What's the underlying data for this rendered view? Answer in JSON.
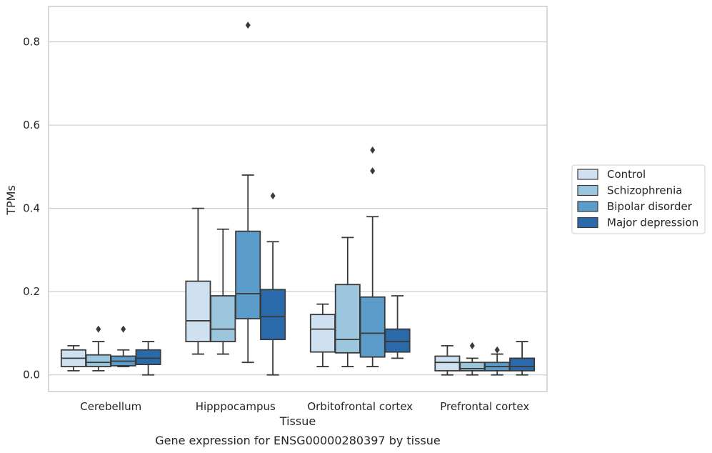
{
  "chart_data": {
    "type": "box",
    "caption": "Gene expression for ENSG00000280397 by tissue",
    "xlabel": "Tissue",
    "ylabel": "TPMs",
    "ylim": [
      -0.04,
      0.885
    ],
    "yticks": [
      0.0,
      0.2,
      0.4,
      0.6,
      0.8
    ],
    "ytick_labels": [
      "0.0",
      "0.2",
      "0.4",
      "0.6",
      "0.8"
    ],
    "grid": "horizontal",
    "legend_position": "right",
    "categories": [
      "Cerebellum",
      "Hipppocampus",
      "Orbitofrontal cortex",
      "Prefrontal cortex"
    ],
    "series": [
      {
        "name": "Control",
        "color": "#cfe0f1",
        "boxes": [
          {
            "q1": 0.02,
            "median": 0.04,
            "q3": 0.06,
            "whisker_low": 0.01,
            "whisker_high": 0.07,
            "outliers": []
          },
          {
            "q1": 0.08,
            "median": 0.13,
            "q3": 0.225,
            "whisker_low": 0.05,
            "whisker_high": 0.4,
            "outliers": []
          },
          {
            "q1": 0.055,
            "median": 0.11,
            "q3": 0.145,
            "whisker_low": 0.02,
            "whisker_high": 0.17,
            "outliers": []
          },
          {
            "q1": 0.01,
            "median": 0.03,
            "q3": 0.045,
            "whisker_low": 0.0,
            "whisker_high": 0.07,
            "outliers": []
          }
        ]
      },
      {
        "name": "Schizophrenia",
        "color": "#9cc6de",
        "boxes": [
          {
            "q1": 0.02,
            "median": 0.03,
            "q3": 0.048,
            "whisker_low": 0.01,
            "whisker_high": 0.08,
            "outliers": [
              0.11
            ]
          },
          {
            "q1": 0.08,
            "median": 0.11,
            "q3": 0.19,
            "whisker_low": 0.05,
            "whisker_high": 0.35,
            "outliers": []
          },
          {
            "q1": 0.053,
            "median": 0.085,
            "q3": 0.217,
            "whisker_low": 0.02,
            "whisker_high": 0.33,
            "outliers": []
          },
          {
            "q1": 0.01,
            "median": 0.015,
            "q3": 0.03,
            "whisker_low": 0.0,
            "whisker_high": 0.04,
            "outliers": [
              0.07
            ]
          }
        ]
      },
      {
        "name": "Bipolar disorder",
        "color": "#5b9cca",
        "boxes": [
          {
            "q1": 0.022,
            "median": 0.033,
            "q3": 0.045,
            "whisker_low": 0.02,
            "whisker_high": 0.06,
            "outliers": [
              0.11
            ]
          },
          {
            "q1": 0.135,
            "median": 0.195,
            "q3": 0.345,
            "whisker_low": 0.03,
            "whisker_high": 0.48,
            "outliers": [
              0.84
            ]
          },
          {
            "q1": 0.043,
            "median": 0.1,
            "q3": 0.187,
            "whisker_low": 0.02,
            "whisker_high": 0.38,
            "outliers": [
              0.49,
              0.54
            ]
          },
          {
            "q1": 0.01,
            "median": 0.02,
            "q3": 0.03,
            "whisker_low": 0.0,
            "whisker_high": 0.05,
            "outliers": [
              0.06
            ]
          }
        ]
      },
      {
        "name": "Major depression",
        "color": "#2a6aaa",
        "boxes": [
          {
            "q1": 0.025,
            "median": 0.04,
            "q3": 0.06,
            "whisker_low": 0.0,
            "whisker_high": 0.08,
            "outliers": []
          },
          {
            "q1": 0.085,
            "median": 0.14,
            "q3": 0.205,
            "whisker_low": 0.0,
            "whisker_high": 0.32,
            "outliers": [
              0.43
            ]
          },
          {
            "q1": 0.055,
            "median": 0.08,
            "q3": 0.11,
            "whisker_low": 0.04,
            "whisker_high": 0.19,
            "outliers": []
          },
          {
            "q1": 0.01,
            "median": 0.02,
            "q3": 0.04,
            "whisker_low": 0.0,
            "whisker_high": 0.08,
            "outliers": []
          }
        ]
      }
    ]
  }
}
